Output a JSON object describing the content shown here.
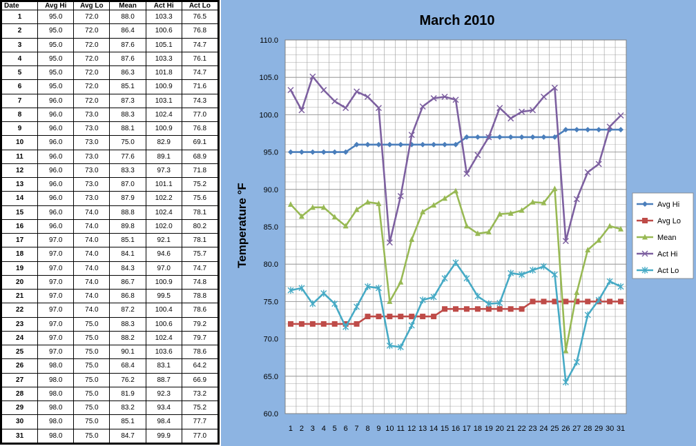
{
  "table": {
    "headers": [
      "Date",
      "Avg Hi",
      "Avg Lo",
      "Mean",
      "Act Hi",
      "Act Lo"
    ],
    "rows": [
      [
        "1",
        "95.0",
        "72.0",
        "88.0",
        "103.3",
        "76.5"
      ],
      [
        "2",
        "95.0",
        "72.0",
        "86.4",
        "100.6",
        "76.8"
      ],
      [
        "3",
        "95.0",
        "72.0",
        "87.6",
        "105.1",
        "74.7"
      ],
      [
        "4",
        "95.0",
        "72.0",
        "87.6",
        "103.3",
        "76.1"
      ],
      [
        "5",
        "95.0",
        "72.0",
        "86.3",
        "101.8",
        "74.7"
      ],
      [
        "6",
        "95.0",
        "72.0",
        "85.1",
        "100.9",
        "71.6"
      ],
      [
        "7",
        "96.0",
        "72.0",
        "87.3",
        "103.1",
        "74.3"
      ],
      [
        "8",
        "96.0",
        "73.0",
        "88.3",
        "102.4",
        "77.0"
      ],
      [
        "9",
        "96.0",
        "73.0",
        "88.1",
        "100.9",
        "76.8"
      ],
      [
        "10",
        "96.0",
        "73.0",
        "75.0",
        "82.9",
        "69.1"
      ],
      [
        "11",
        "96.0",
        "73.0",
        "77.6",
        "89.1",
        "68.9"
      ],
      [
        "12",
        "96.0",
        "73.0",
        "83.3",
        "97.3",
        "71.8"
      ],
      [
        "13",
        "96.0",
        "73.0",
        "87.0",
        "101.1",
        "75.2"
      ],
      [
        "14",
        "96.0",
        "73.0",
        "87.9",
        "102.2",
        "75.6"
      ],
      [
        "15",
        "96.0",
        "74.0",
        "88.8",
        "102.4",
        "78.1"
      ],
      [
        "16",
        "96.0",
        "74.0",
        "89.8",
        "102.0",
        "80.2"
      ],
      [
        "17",
        "97.0",
        "74.0",
        "85.1",
        "92.1",
        "78.1"
      ],
      [
        "18",
        "97.0",
        "74.0",
        "84.1",
        "94.6",
        "75.7"
      ],
      [
        "19",
        "97.0",
        "74.0",
        "84.3",
        "97.0",
        "74.7"
      ],
      [
        "20",
        "97.0",
        "74.0",
        "86.7",
        "100.9",
        "74.8"
      ],
      [
        "21",
        "97.0",
        "74.0",
        "86.8",
        "99.5",
        "78.8"
      ],
      [
        "22",
        "97.0",
        "74.0",
        "87.2",
        "100.4",
        "78.6"
      ],
      [
        "23",
        "97.0",
        "75.0",
        "88.3",
        "100.6",
        "79.2"
      ],
      [
        "24",
        "97.0",
        "75.0",
        "88.2",
        "102.4",
        "79.7"
      ],
      [
        "25",
        "97.0",
        "75.0",
        "90.1",
        "103.6",
        "78.6"
      ],
      [
        "26",
        "98.0",
        "75.0",
        "68.4",
        "83.1",
        "64.2"
      ],
      [
        "27",
        "98.0",
        "75.0",
        "76.2",
        "88.7",
        "66.9"
      ],
      [
        "28",
        "98.0",
        "75.0",
        "81.9",
        "92.3",
        "73.2"
      ],
      [
        "29",
        "98.0",
        "75.0",
        "83.2",
        "93.4",
        "75.2"
      ],
      [
        "30",
        "98.0",
        "75.0",
        "85.1",
        "98.4",
        "77.7"
      ],
      [
        "31",
        "98.0",
        "75.0",
        "84.7",
        "99.9",
        "77.0"
      ]
    ]
  },
  "chart_data": {
    "type": "line",
    "title": "March 2010",
    "xlabel": "",
    "ylabel": "Temperature °F",
    "ylim": [
      60,
      110
    ],
    "ytick_step": 5,
    "ytick_labels": [
      "60.0",
      "65.0",
      "70.0",
      "75.0",
      "80.0",
      "85.0",
      "90.0",
      "95.0",
      "100.0",
      "105.0",
      "110.0"
    ],
    "x": [
      1,
      2,
      3,
      4,
      5,
      6,
      7,
      8,
      9,
      10,
      11,
      12,
      13,
      14,
      15,
      16,
      17,
      18,
      19,
      20,
      21,
      22,
      23,
      24,
      25,
      26,
      27,
      28,
      29,
      30,
      31
    ],
    "grid": "vertical",
    "legend_position": "right",
    "series": [
      {
        "name": "Avg Hi",
        "color": "#4a7ebb",
        "marker": "diamond",
        "values": [
          95,
          95,
          95,
          95,
          95,
          95,
          96,
          96,
          96,
          96,
          96,
          96,
          96,
          96,
          96,
          96,
          97,
          97,
          97,
          97,
          97,
          97,
          97,
          97,
          97,
          98,
          98,
          98,
          98,
          98,
          98
        ]
      },
      {
        "name": "Avg Lo",
        "color": "#be4b48",
        "marker": "square",
        "values": [
          72,
          72,
          72,
          72,
          72,
          72,
          72,
          73,
          73,
          73,
          73,
          73,
          73,
          73,
          74,
          74,
          74,
          74,
          74,
          74,
          74,
          74,
          75,
          75,
          75,
          75,
          75,
          75,
          75,
          75,
          75
        ]
      },
      {
        "name": "Mean",
        "color": "#98b954",
        "marker": "triangle",
        "values": [
          88.0,
          86.4,
          87.6,
          87.6,
          86.3,
          85.1,
          87.3,
          88.3,
          88.1,
          75.0,
          77.6,
          83.3,
          87.0,
          87.9,
          88.8,
          89.8,
          85.1,
          84.1,
          84.3,
          86.7,
          86.8,
          87.2,
          88.3,
          88.2,
          90.1,
          68.4,
          76.2,
          81.9,
          83.2,
          85.1,
          84.7
        ]
      },
      {
        "name": "Act Hi",
        "color": "#7d60a0",
        "marker": "x",
        "values": [
          103.3,
          100.6,
          105.1,
          103.3,
          101.8,
          100.9,
          103.1,
          102.4,
          100.9,
          82.9,
          89.1,
          97.3,
          101.1,
          102.2,
          102.4,
          102.0,
          92.1,
          94.6,
          97.0,
          100.9,
          99.5,
          100.4,
          100.6,
          102.4,
          103.6,
          83.1,
          88.7,
          92.3,
          93.4,
          98.4,
          99.9
        ]
      },
      {
        "name": "Act Lo",
        "color": "#46aac5",
        "marker": "star",
        "values": [
          76.5,
          76.8,
          74.7,
          76.1,
          74.7,
          71.6,
          74.3,
          77.0,
          76.8,
          69.1,
          68.9,
          71.8,
          75.2,
          75.6,
          78.1,
          80.2,
          78.1,
          75.7,
          74.7,
          74.8,
          78.8,
          78.6,
          79.2,
          79.7,
          78.6,
          64.2,
          66.9,
          73.2,
          75.2,
          77.7,
          77.0
        ]
      }
    ]
  }
}
